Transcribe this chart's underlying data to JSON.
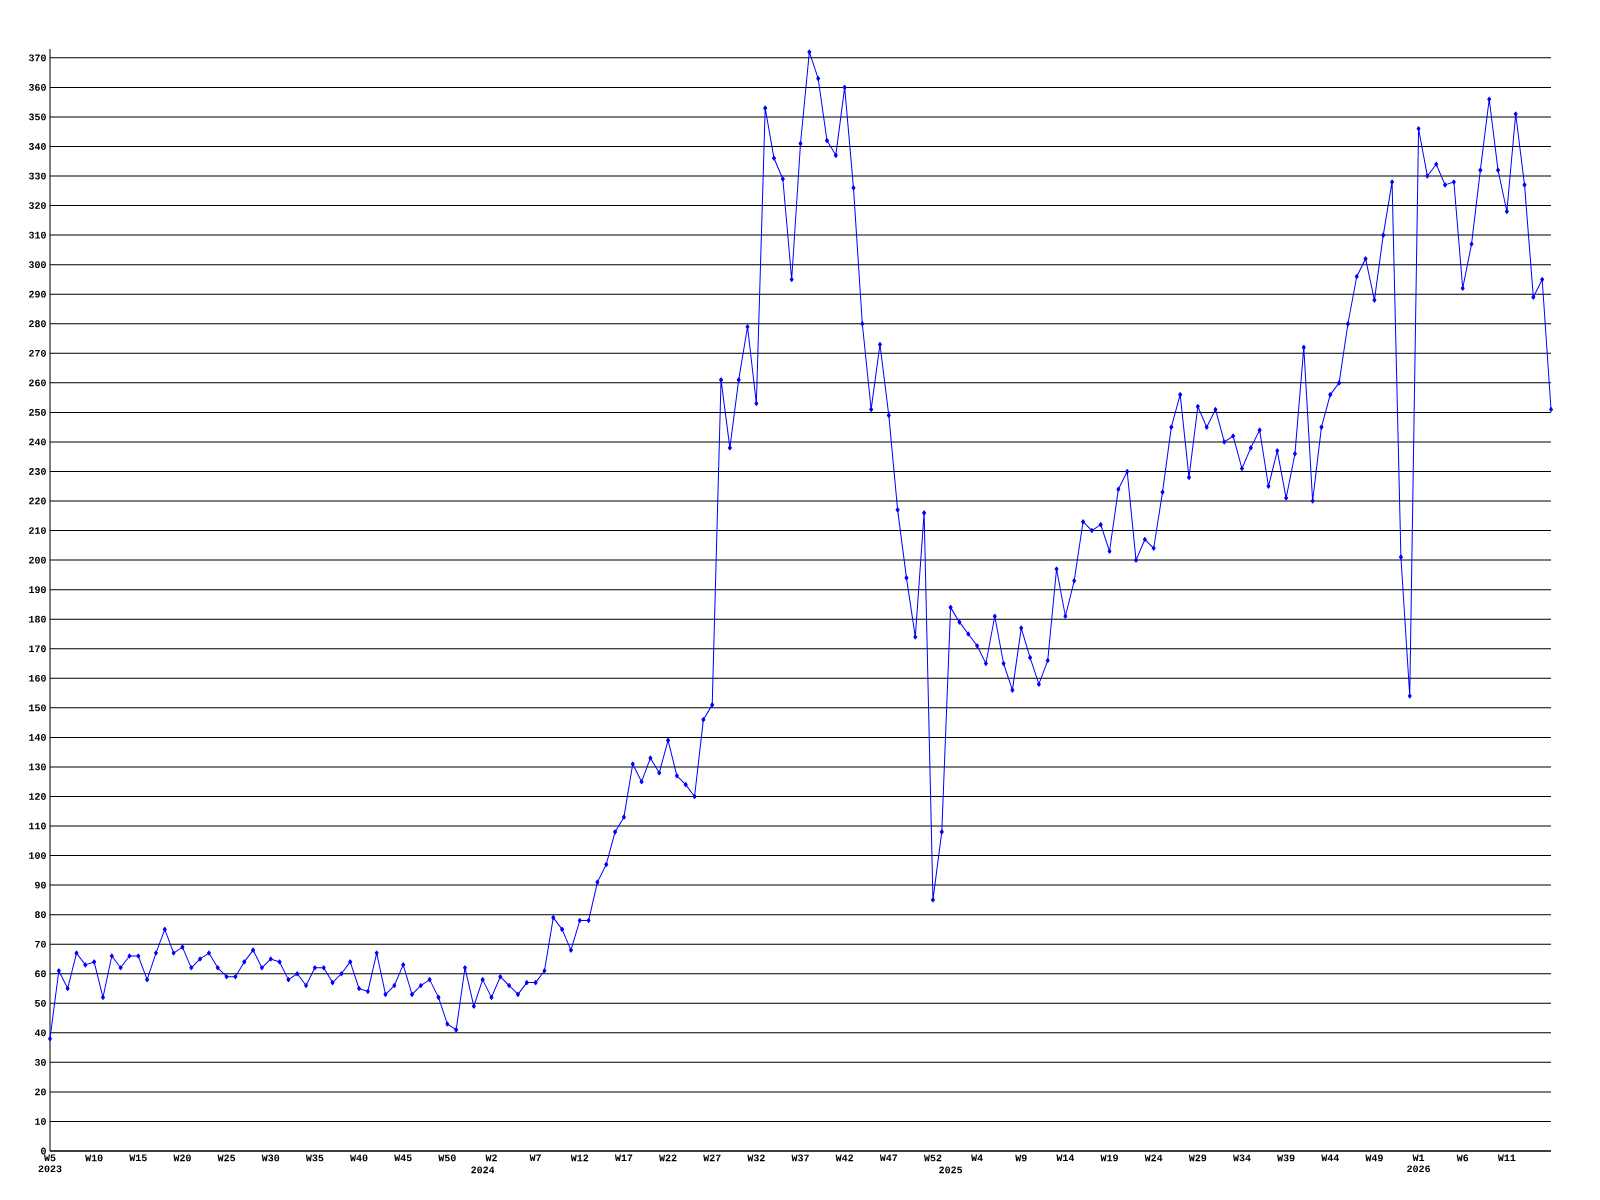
{
  "chart_data": {
    "type": "line",
    "categories": [
      "W5 2023",
      null,
      null,
      null,
      null,
      "W10",
      null,
      null,
      null,
      null,
      "W15",
      null,
      null,
      null,
      null,
      "W20",
      null,
      null,
      null,
      null,
      "W25",
      null,
      null,
      null,
      null,
      "W30",
      null,
      null,
      null,
      null,
      "W35",
      null,
      null,
      null,
      null,
      "W40",
      null,
      null,
      null,
      null,
      "W45",
      null,
      null,
      null,
      null,
      "W50",
      null,
      null,
      null,
      "2024",
      "W2",
      null,
      null,
      null,
      null,
      "W7",
      null,
      null,
      null,
      null,
      "W12",
      null,
      null,
      null,
      null,
      "W17",
      null,
      null,
      null,
      null,
      "W22",
      null,
      null,
      null,
      null,
      "W27",
      null,
      null,
      null,
      null,
      "W32",
      null,
      null,
      null,
      null,
      "W37",
      null,
      null,
      null,
      null,
      "W42",
      null,
      null,
      null,
      null,
      "W47",
      null,
      null,
      null,
      null,
      "W52",
      null,
      "2025",
      null,
      null,
      "W4",
      null,
      null,
      null,
      null,
      "W9",
      null,
      null,
      null,
      null,
      "W14",
      null,
      null,
      null,
      null,
      "W19",
      null,
      null,
      null,
      null,
      "W24",
      null,
      null,
      null,
      null,
      "W29",
      null,
      null,
      null,
      null,
      "W34",
      null,
      null,
      null,
      null,
      "W39",
      null,
      null,
      null,
      null,
      "W44",
      null,
      null,
      null,
      null,
      "W49",
      null,
      null,
      null,
      null,
      "W1 2026",
      null,
      null,
      null,
      null,
      "W6",
      null,
      null,
      null,
      null,
      "W11",
      null,
      null,
      null,
      null,
      null
    ],
    "series": [
      {
        "color": "#0000ff",
        "values": [
          38,
          61,
          55,
          67,
          63,
          64,
          52,
          66,
          62,
          66,
          66,
          58,
          67,
          75,
          67,
          69,
          62,
          65,
          67,
          62,
          59,
          59,
          64,
          68,
          62,
          65,
          64,
          58,
          60,
          56,
          62,
          62,
          57,
          60,
          64,
          55,
          54,
          67,
          53,
          56,
          63,
          53,
          56,
          58,
          52,
          43,
          41,
          62,
          49,
          58,
          52,
          59,
          56,
          53,
          57,
          57,
          61,
          79,
          75,
          68,
          78,
          78,
          91,
          97,
          108,
          113,
          131,
          125,
          133,
          128,
          139,
          127,
          124,
          120,
          146,
          151,
          261,
          238,
          261,
          279,
          253,
          353,
          336,
          329,
          295,
          341,
          372,
          363,
          342,
          337,
          360,
          326,
          280,
          251,
          273,
          249,
          217,
          194,
          174,
          216,
          85,
          108,
          184,
          179,
          175,
          171,
          165,
          181,
          165,
          156,
          177,
          167,
          158,
          166,
          197,
          181,
          193,
          213,
          210,
          212,
          203,
          224,
          230,
          200,
          207,
          204,
          223,
          245,
          256,
          228,
          252,
          245,
          251,
          240,
          242,
          231,
          238,
          244,
          225,
          237,
          221,
          236,
          272,
          220,
          245,
          256,
          260,
          280,
          296,
          302,
          288,
          310,
          328,
          201,
          154,
          346,
          330,
          334,
          327,
          328,
          292,
          307,
          332,
          356,
          332,
          318,
          351,
          327,
          289,
          295,
          251
        ]
      }
    ],
    "ylim": [
      0,
      373
    ],
    "yticks": [
      0,
      10,
      20,
      30,
      40,
      50,
      60,
      70,
      80,
      90,
      100,
      110,
      120,
      130,
      140,
      150,
      160,
      170,
      180,
      190,
      200,
      210,
      220,
      230,
      240,
      250,
      260,
      270,
      280,
      290,
      300,
      310,
      320,
      330,
      340,
      350,
      360,
      370
    ],
    "grid": "y",
    "marker": "diamond",
    "line_style": "solid"
  }
}
